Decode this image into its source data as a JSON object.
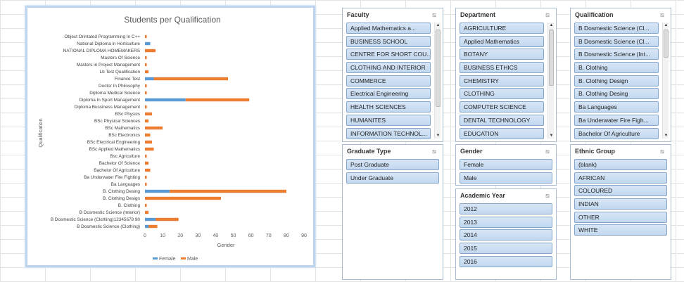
{
  "chart_data": {
    "type": "bar",
    "orientation": "horizontal",
    "stacked": true,
    "title": "Students per Qualification",
    "xlabel": "Gender",
    "ylabel": "Qualification",
    "xlim": [
      0,
      90
    ],
    "xticks": [
      "0",
      "10",
      "20",
      "30",
      "40",
      "50",
      "60",
      "70",
      "80",
      "90"
    ],
    "legend_position": "bottom",
    "grid": false,
    "categories": [
      "Object Orintated Programming In C++",
      "National Diploma in Horticulture",
      "NATIONAL DIPLOMA HOMEMAKERS",
      "Masters Of Science",
      "Masters in Project Management",
      "Lb Test Qualification",
      "Finance Test",
      "Doctor In Philosophy",
      "Diploma Medical Science",
      "Diploma In Sport Management",
      "Diploma Bussiness Management",
      "BSc Physics",
      "BSc Physical Sciences",
      "BSc Mathematics",
      "BSc Electronics",
      "BSc Electrical Engineering",
      "BSc Applied Mathematics",
      "Bsc Agriculture",
      "Bachelor Of Science",
      "Bachelor Of Agriculture",
      "Ba Underwater Fire Fighting",
      "Ba Languages",
      "B. Clothing Desing",
      "B. Clothing Design",
      "B. Clothing",
      "B Dosmestic Science (Interior)",
      "B Dosmestic Science (Clothing)12345678 90",
      "B Dosmestic Science (Clothing)"
    ],
    "series": [
      {
        "name": "Female",
        "color": "#5b9bd5",
        "values": [
          0,
          3,
          0,
          0,
          0,
          0,
          5,
          0,
          0,
          23,
          0,
          0,
          0,
          0,
          0,
          0,
          0,
          0,
          0,
          0,
          0,
          0,
          14,
          0,
          0,
          0,
          6,
          2
        ]
      },
      {
        "name": "Male",
        "color": "#ed7d31",
        "values": [
          1,
          0,
          6,
          1,
          1,
          2,
          42,
          1,
          1,
          36,
          1,
          4,
          2,
          10,
          3,
          4,
          5,
          1,
          2,
          3,
          1,
          1,
          66,
          43,
          1,
          2,
          13,
          5
        ]
      }
    ]
  },
  "slicers": {
    "faculty": {
      "title": "Faculty",
      "items": [
        "Applied Mathematics a...",
        "BUSINESS SCHOOL",
        "CENTRE FOR SHORT COU...",
        "CLOTHING AND INTERIOR",
        "COMMERCE",
        "Electrical Engineering",
        "HEALTH SCIENCES",
        "HUMANITES",
        "INFORMATION TECHNOL..."
      ]
    },
    "department": {
      "title": "Department",
      "items": [
        "AGRICULTURE",
        "Applied Mathematics",
        "BOTANY",
        "BUSINESS ETHICS",
        "CHEMISTRY",
        "CLOTHING",
        "COMPUTER SCIENCE",
        "DENTAL TECHNOLOGY",
        "EDUCATION"
      ]
    },
    "qualification": {
      "title": "Qualification",
      "items": [
        "B Dosmestic Science (Cl...",
        "B Dosmestic Science (Cl...",
        "B Dosmestic Science (Int...",
        "B. Clothing",
        "B. Clothing Design",
        "B. Clothing Desing",
        "Ba Languages",
        "Ba Underwater Fire Figh...",
        "Bachelor Of Agriculture"
      ]
    },
    "graduate_type": {
      "title": "Graduate Type",
      "items": [
        "Post Graduate",
        "Under Graduate"
      ]
    },
    "gender": {
      "title": "Gender",
      "items": [
        "Female",
        "Male"
      ]
    },
    "academic_year": {
      "title": "Academic Year",
      "items": [
        "2012",
        "2013",
        "2014",
        "2015",
        "2016"
      ]
    },
    "ethnic_group": {
      "title": "Ethnic Group",
      "items": [
        "(blank)",
        "AFRICAN",
        "COLOURED",
        "INDIAN",
        "OTHER",
        "WHITE"
      ]
    }
  },
  "icons": {
    "filter": "clear-filter-icon",
    "scroll_up": "scroll-up-arrow-icon",
    "scroll_down": "scroll-down-arrow-icon"
  }
}
